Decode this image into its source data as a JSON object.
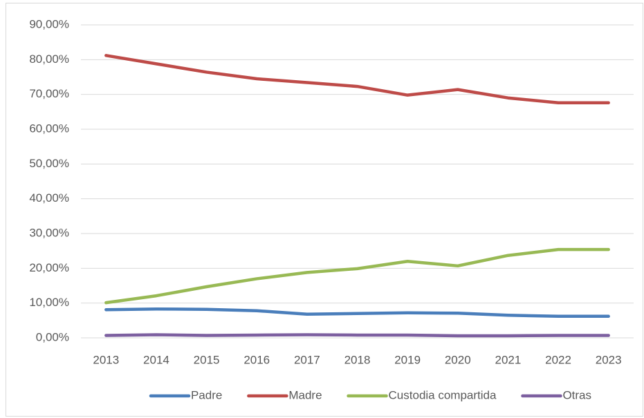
{
  "chart_data": {
    "type": "line",
    "categories": [
      "2013",
      "2014",
      "2015",
      "2016",
      "2017",
      "2018",
      "2019",
      "2020",
      "2021",
      "2022",
      "2023"
    ],
    "series": [
      {
        "name": "Padre",
        "color": "#4a7ebb",
        "values": [
          8.1,
          8.3,
          8.2,
          7.8,
          6.8,
          7.0,
          7.2,
          7.1,
          6.5,
          6.2,
          6.2
        ]
      },
      {
        "name": "Madre",
        "color": "#be4b48",
        "values": [
          81.2,
          78.8,
          76.4,
          74.5,
          73.4,
          72.3,
          69.8,
          71.4,
          69.0,
          67.6,
          67.6
        ]
      },
      {
        "name": "Custodia compartida",
        "color": "#98b954",
        "values": [
          10.1,
          12.1,
          14.7,
          17.0,
          18.8,
          19.9,
          22.0,
          20.7,
          23.7,
          25.4,
          25.4
        ]
      },
      {
        "name": "Otras",
        "color": "#7d60a0",
        "values": [
          0.7,
          0.9,
          0.7,
          0.8,
          0.9,
          0.8,
          0.8,
          0.6,
          0.6,
          0.7,
          0.7
        ]
      }
    ],
    "ylim": [
      0,
      90
    ],
    "yticks": [
      {
        "value": 0,
        "label": "0,00%"
      },
      {
        "value": 10,
        "label": "10,00%"
      },
      {
        "value": 20,
        "label": "20,00%"
      },
      {
        "value": 30,
        "label": "30,00%"
      },
      {
        "value": 40,
        "label": "40,00%"
      },
      {
        "value": 50,
        "label": "50,00%"
      },
      {
        "value": 60,
        "label": "60,00%"
      },
      {
        "value": 70,
        "label": "70,00%"
      },
      {
        "value": 80,
        "label": "80,00%"
      },
      {
        "value": 90,
        "label": "90,00%"
      }
    ],
    "grid": true,
    "legend": "bottom"
  }
}
